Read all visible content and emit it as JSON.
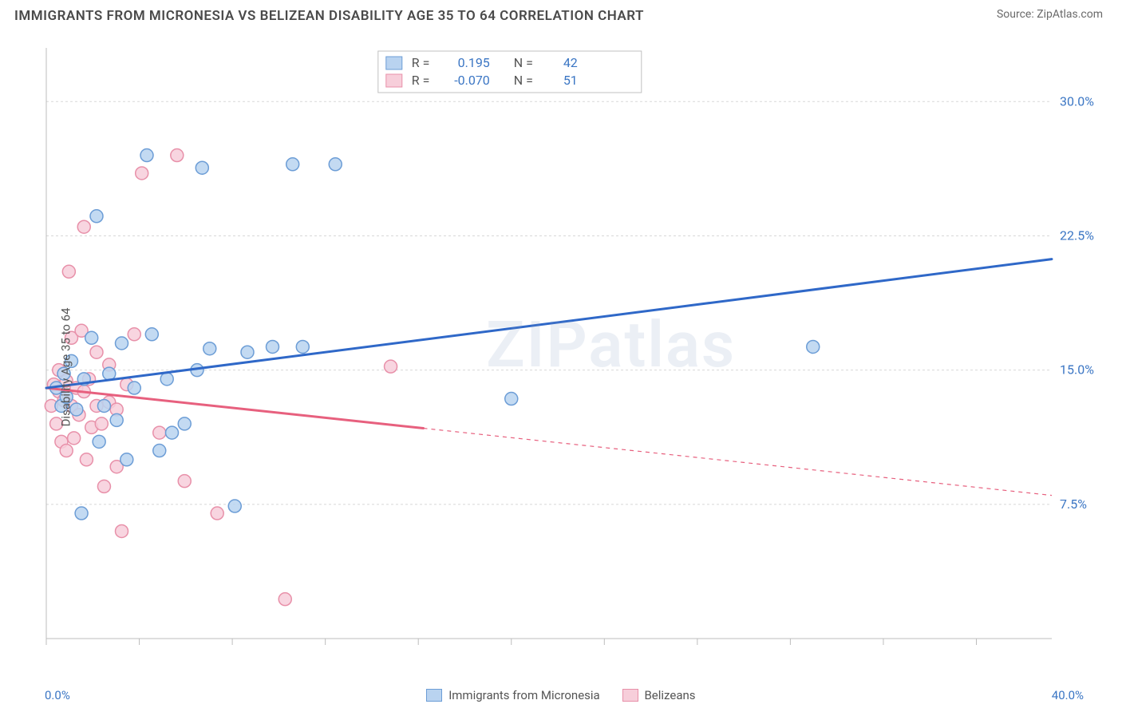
{
  "header": {
    "title": "IMMIGRANTS FROM MICRONESIA VS BELIZEAN DISABILITY AGE 35 TO 64 CORRELATION CHART",
    "source_prefix": "Source: ",
    "source": "ZipAtlas.com"
  },
  "watermark": "ZIPatlas",
  "chart": {
    "type": "scatter",
    "background_color": "#ffffff",
    "grid_color": "#d8d8d8",
    "axis_color": "#bdbdbd",
    "ylabel": "Disability Age 35 to 64",
    "ylabel_fontsize": 15,
    "xlim": [
      0,
      40
    ],
    "ylim": [
      0,
      33
    ],
    "ytick_positions": [
      7.5,
      15.0,
      22.5,
      30.0
    ],
    "ytick_labels": [
      "7.5%",
      "15.0%",
      "22.5%",
      "30.0%"
    ],
    "ytick_color": "#3B76C4",
    "xtick_positions": [
      0,
      3.7,
      7.4,
      11.1,
      14.8,
      18.5,
      22.2,
      25.9,
      29.6,
      33.3,
      37.0
    ],
    "x_start_label": "0.0%",
    "x_end_label": "40.0%",
    "x_label_color": "#3B76C4",
    "series": {
      "micronesia": {
        "label": "Immigrants from Micronesia",
        "fill": "#B9D3F0",
        "stroke": "#6C9DD6",
        "line_color": "#2F68C8",
        "R": "0.195",
        "N": "42",
        "trend": {
          "x1": 0,
          "y1": 14.0,
          "x2": 40,
          "y2": 21.2,
          "solid_until_x": 40
        },
        "points": [
          [
            0.4,
            14.0
          ],
          [
            0.6,
            13.0
          ],
          [
            0.7,
            14.8
          ],
          [
            0.8,
            13.5
          ],
          [
            1.0,
            15.5
          ],
          [
            1.2,
            12.8
          ],
          [
            1.4,
            7.0
          ],
          [
            1.5,
            14.5
          ],
          [
            1.8,
            16.8
          ],
          [
            2.0,
            23.6
          ],
          [
            2.1,
            11.0
          ],
          [
            2.3,
            13.0
          ],
          [
            2.5,
            14.8
          ],
          [
            2.8,
            12.2
          ],
          [
            3.0,
            16.5
          ],
          [
            3.2,
            10.0
          ],
          [
            3.5,
            14.0
          ],
          [
            4.0,
            27.0
          ],
          [
            4.2,
            17.0
          ],
          [
            4.5,
            10.5
          ],
          [
            4.8,
            14.5
          ],
          [
            5.0,
            11.5
          ],
          [
            5.5,
            12.0
          ],
          [
            6.0,
            15.0
          ],
          [
            6.2,
            26.3
          ],
          [
            6.5,
            16.2
          ],
          [
            7.5,
            7.4
          ],
          [
            8.0,
            16.0
          ],
          [
            9.0,
            16.3
          ],
          [
            9.8,
            26.5
          ],
          [
            10.2,
            16.3
          ],
          [
            11.5,
            26.5
          ],
          [
            18.5,
            13.4
          ],
          [
            30.5,
            16.3
          ]
        ]
      },
      "belizeans": {
        "label": "Belizeans",
        "fill": "#F7CEDA",
        "stroke": "#E890A9",
        "line_color": "#E7607E",
        "R": "-0.070",
        "N": "51",
        "trend": {
          "x1": 0,
          "y1": 14.0,
          "x2": 40,
          "y2": 8.0,
          "solid_until_x": 15
        },
        "points": [
          [
            0.2,
            13.0
          ],
          [
            0.3,
            14.2
          ],
          [
            0.4,
            12.0
          ],
          [
            0.5,
            13.8
          ],
          [
            0.5,
            15.0
          ],
          [
            0.6,
            11.0
          ],
          [
            0.7,
            13.3
          ],
          [
            0.8,
            14.4
          ],
          [
            0.8,
            10.5
          ],
          [
            0.9,
            20.5
          ],
          [
            1.0,
            13.0
          ],
          [
            1.0,
            16.8
          ],
          [
            1.1,
            11.2
          ],
          [
            1.2,
            14.0
          ],
          [
            1.3,
            12.5
          ],
          [
            1.4,
            17.2
          ],
          [
            1.5,
            13.8
          ],
          [
            1.5,
            23.0
          ],
          [
            1.6,
            10.0
          ],
          [
            1.7,
            14.5
          ],
          [
            1.8,
            11.8
          ],
          [
            2.0,
            13.0
          ],
          [
            2.0,
            16.0
          ],
          [
            2.2,
            12.0
          ],
          [
            2.3,
            8.5
          ],
          [
            2.5,
            15.3
          ],
          [
            2.5,
            13.2
          ],
          [
            2.8,
            12.8
          ],
          [
            2.8,
            9.6
          ],
          [
            3.0,
            6.0
          ],
          [
            3.2,
            14.2
          ],
          [
            3.5,
            17.0
          ],
          [
            3.8,
            26.0
          ],
          [
            4.5,
            11.5
          ],
          [
            5.2,
            27.0
          ],
          [
            5.5,
            8.8
          ],
          [
            6.8,
            7.0
          ],
          [
            9.5,
            2.2
          ],
          [
            13.7,
            15.2
          ]
        ]
      }
    },
    "stats_box": {
      "border_color": "#c0c0c0",
      "bg_color": "#ffffff",
      "R_label": "R =",
      "N_label": "N =",
      "value_color": "#3B76C4"
    },
    "bottom_legend": {
      "items": [
        "micronesia",
        "belizeans"
      ]
    },
    "marker_radius": 8,
    "marker_stroke_width": 1.5,
    "trend_line_width": 3
  }
}
